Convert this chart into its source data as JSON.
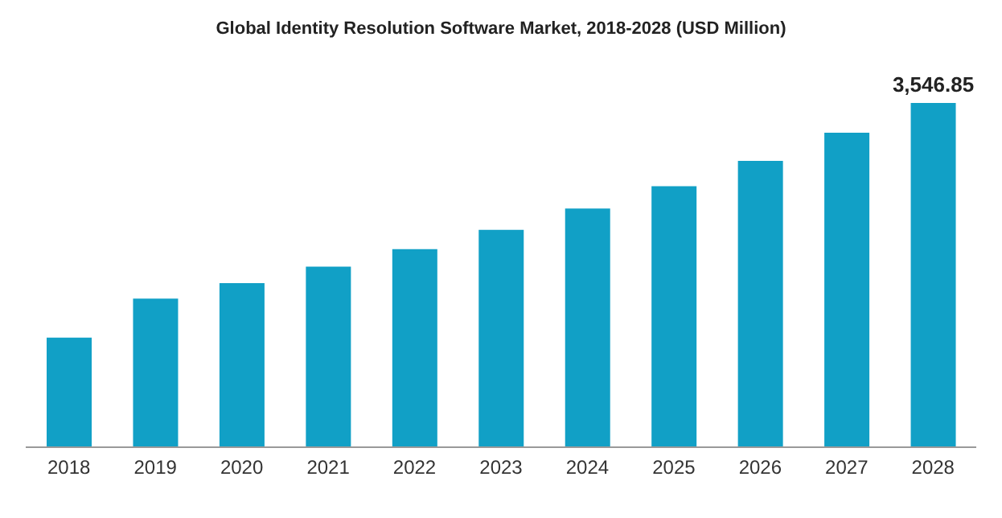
{
  "chart_data": {
    "type": "bar",
    "title": "Global Identity Resolution Software Market, 2018-2028 (USD Million)",
    "categories": [
      "2018",
      "2019",
      "2020",
      "2021",
      "2022",
      "2023",
      "2024",
      "2025",
      "2026",
      "2027",
      "2028"
    ],
    "values": [
      1130,
      1530,
      1690,
      1860,
      2040,
      2240,
      2460,
      2690,
      2950,
      3240,
      3546.85
    ],
    "value_labels": [
      null,
      null,
      null,
      null,
      null,
      null,
      null,
      null,
      null,
      null,
      "3,546.85"
    ],
    "color": "#11a0c6",
    "grid": false,
    "legend": false
  }
}
